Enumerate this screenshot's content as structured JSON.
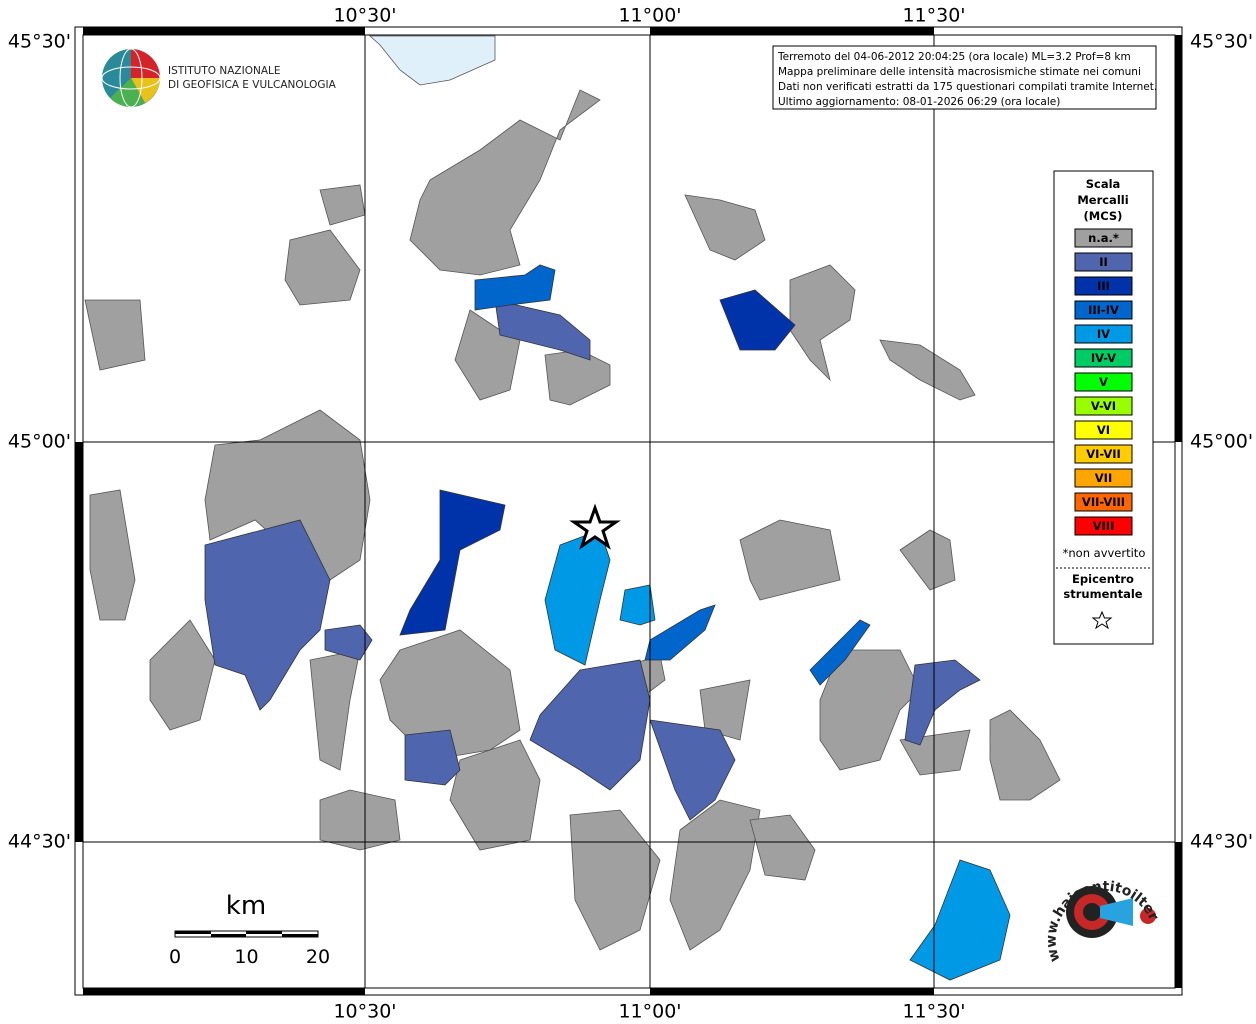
{
  "axes": {
    "top": [
      "10°30'",
      "11°00'",
      "11°30'"
    ],
    "bottom": [
      "10°30'",
      "11°00'",
      "11°30'"
    ],
    "left": [
      "45°30'",
      "45°00'",
      "44°30'"
    ],
    "right": [
      "45°30'",
      "45°00'",
      "44°30'"
    ]
  },
  "logo": {
    "line1": "ISTITUTO NAZIONALE",
    "line2": "DI GEOFISICA E VULCANOLOGIA"
  },
  "info": [
    "Terremoto del 04-06-2012 20:04:25 (ora locale) ML=3.2 Prof=8 km",
    "Mappa preliminare delle intensità macrosismiche stimate nei comuni",
    "Dati non verificati estratti da 175 questionari compilati tramite Internet.",
    "Ultimo aggiornamento: 08-01-2026 06:29 (ora locale)"
  ],
  "legend": {
    "title": [
      "Scala",
      "Mercalli",
      "(MCS)"
    ],
    "items": [
      {
        "label": "n.a.*",
        "color": "#a0a0a0"
      },
      {
        "label": "II",
        "color": "#4f65ad"
      },
      {
        "label": "III",
        "color": "#0033aa"
      },
      {
        "label": "III-IV",
        "color": "#0066cc"
      },
      {
        "label": "IV",
        "color": "#0099e6"
      },
      {
        "label": "IV-V",
        "color": "#00cc66"
      },
      {
        "label": "V",
        "color": "#00ff00"
      },
      {
        "label": "V-VI",
        "color": "#99ff00"
      },
      {
        "label": "VI",
        "color": "#ffff00"
      },
      {
        "label": "VI-VII",
        "color": "#ffcc00"
      },
      {
        "label": "VII",
        "color": "#ffa500"
      },
      {
        "label": "VII-VIII",
        "color": "#ff6600"
      },
      {
        "label": "VIII",
        "color": "#ff0000"
      }
    ],
    "note": "*non avvertito",
    "epicenter": [
      "Epicentro",
      "strumentale"
    ]
  },
  "scale": {
    "unit": "km",
    "ticks": [
      0,
      10,
      20
    ]
  },
  "badge": {
    "text": "www.haisentitoilterremoto.it"
  }
}
